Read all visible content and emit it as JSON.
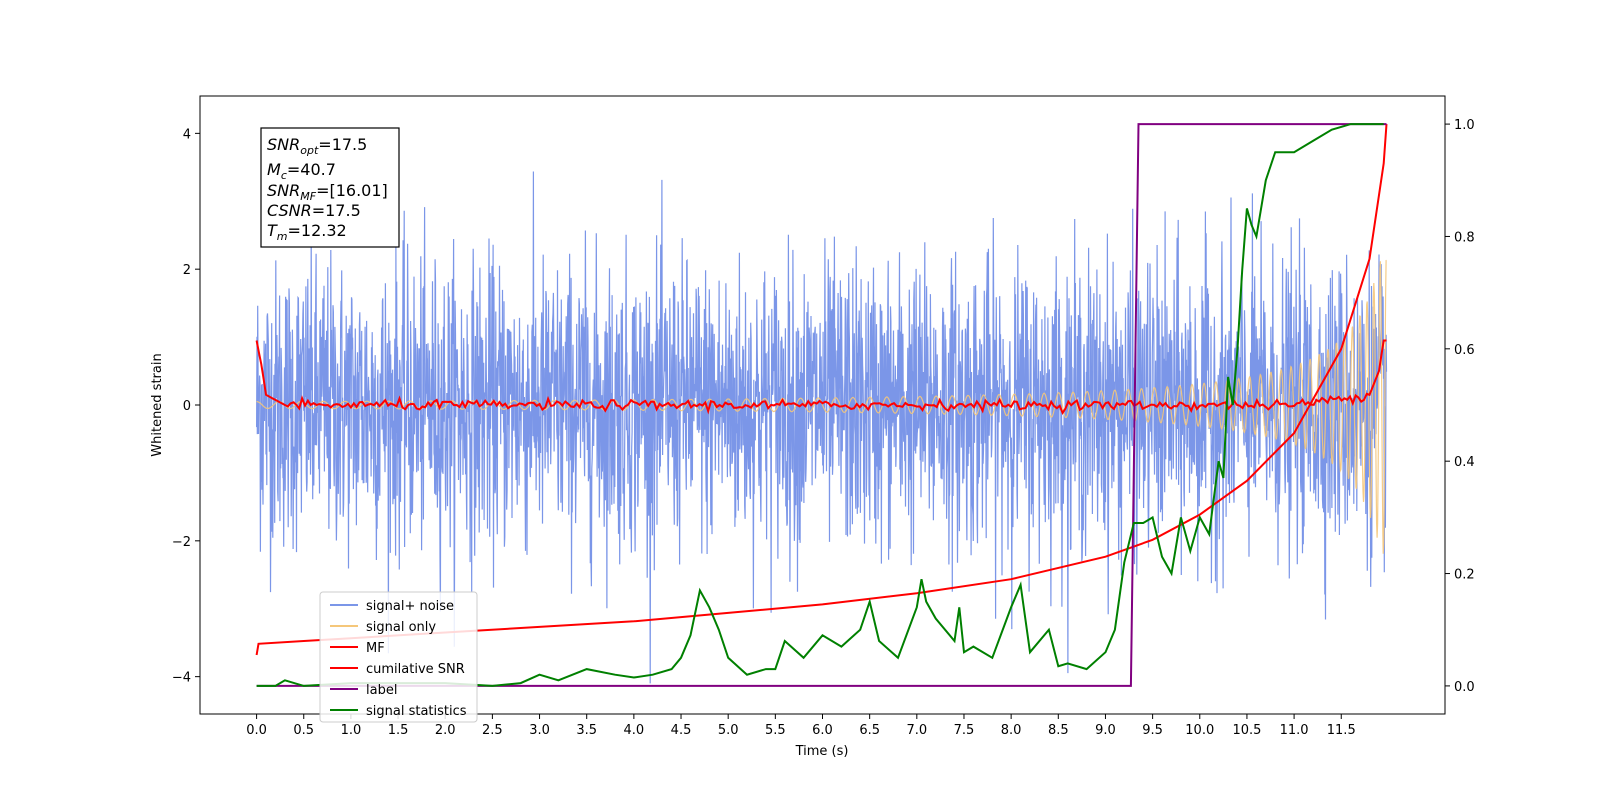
{
  "chart_data": {
    "type": "line",
    "xlabel": "Time (s)",
    "ylabel": "Whitened strain",
    "xlim": [
      -0.6,
      12.6
    ],
    "ylim": [
      -4.55,
      4.55
    ],
    "y2lim": [
      -0.05,
      1.05
    ],
    "x_ticks": [
      "0.0",
      "0.5",
      "1.0",
      "1.5",
      "2.0",
      "2.5",
      "3.0",
      "3.5",
      "4.0",
      "4.5",
      "5.0",
      "5.5",
      "6.0",
      "6.5",
      "7.0",
      "7.5",
      "8.0",
      "8.5",
      "9.0",
      "9.5",
      "10.0",
      "10.5",
      "11.0",
      "11.5"
    ],
    "y_ticks": [
      "−4",
      "−2",
      "0",
      "2",
      "4"
    ],
    "y2_ticks": [
      "0.0",
      "0.2",
      "0.4",
      "0.6",
      "0.8",
      "1.0"
    ],
    "legend_position": "lower-left",
    "colors": {
      "signal_noise": "#7b96e8",
      "signal_only": "#f5c77a",
      "mf": "#ff0000",
      "cumulative_snr": "#ff0000",
      "label": "#800080",
      "signal_statistics": "#008000"
    },
    "annotation": {
      "snr_opt": {
        "main": "SNR",
        "sub": "opt",
        "value": "=17.5"
      },
      "mc": {
        "main": "M",
        "sub": "c",
        "value": "=40.7"
      },
      "snr_mf": {
        "main": "SNR",
        "sub": "MF",
        "value": "=[16.01]"
      },
      "csnr": {
        "main": "CSNR",
        "value": "=17.5"
      },
      "tm": {
        "main": "T",
        "sub": "m",
        "value": "=12.32"
      }
    },
    "series": [
      {
        "name": "signal+ noise",
        "axis": "left",
        "note": "whitened noise, spread approx ±3, t from 0.0 to 11.98 s"
      },
      {
        "name": "signal only",
        "axis": "left",
        "note": "chirp amplitude growing to approx 2.2 at t=11.98"
      },
      {
        "name": "MF",
        "axis": "left",
        "x": [
          0.0,
          0.05,
          0.1,
          0.3,
          1.0,
          2.0,
          3.0,
          4.0,
          5.0,
          6.0,
          7.0,
          8.0,
          9.0,
          10.0,
          11.0,
          11.8,
          11.9,
          11.95,
          11.98
        ],
        "y": [
          0.95,
          0.6,
          0.15,
          0.0,
          0.0,
          0.0,
          0.0,
          0.0,
          0.0,
          0.0,
          0.0,
          0.0,
          0.0,
          0.0,
          0.0,
          0.15,
          0.5,
          0.95,
          0.95
        ]
      },
      {
        "name": "cumilative SNR",
        "axis": "right",
        "x": [
          0.0,
          0.02,
          0.5,
          1.0,
          2.0,
          3.0,
          4.0,
          5.0,
          6.0,
          7.0,
          8.0,
          9.0,
          9.5,
          10.0,
          10.5,
          11.0,
          11.5,
          11.8,
          11.95,
          11.98
        ],
        "y": [
          0.055,
          0.075,
          0.08,
          0.085,
          0.095,
          0.105,
          0.115,
          0.13,
          0.145,
          0.165,
          0.19,
          0.23,
          0.26,
          0.305,
          0.365,
          0.45,
          0.6,
          0.76,
          0.93,
          1.0
        ]
      },
      {
        "name": "label",
        "axis": "right",
        "x": [
          0.0,
          9.27,
          9.35,
          11.98
        ],
        "y": [
          0.0,
          0.0,
          1.0,
          1.0
        ]
      },
      {
        "name": "signal statistics",
        "axis": "right",
        "x": [
          0.0,
          0.2,
          0.3,
          0.5,
          1.0,
          1.5,
          2.0,
          2.5,
          2.8,
          3.0,
          3.2,
          3.5,
          3.8,
          4.0,
          4.2,
          4.4,
          4.5,
          4.6,
          4.7,
          4.8,
          4.9,
          5.0,
          5.2,
          5.4,
          5.5,
          5.6,
          5.8,
          6.0,
          6.2,
          6.4,
          6.5,
          6.6,
          6.8,
          7.0,
          7.05,
          7.1,
          7.2,
          7.4,
          7.45,
          7.5,
          7.6,
          7.8,
          8.0,
          8.1,
          8.2,
          8.4,
          8.5,
          8.6,
          8.8,
          9.0,
          9.1,
          9.2,
          9.3,
          9.4,
          9.5,
          9.6,
          9.7,
          9.8,
          9.9,
          10.0,
          10.1,
          10.2,
          10.25,
          10.3,
          10.35,
          10.4,
          10.45,
          10.5,
          10.55,
          10.6,
          10.7,
          10.8,
          11.0,
          11.2,
          11.4,
          11.6,
          11.8,
          11.95
        ],
        "y": [
          0.0,
          0.0,
          0.01,
          0.0,
          0.005,
          0.005,
          0.005,
          0.0,
          0.005,
          0.02,
          0.01,
          0.03,
          0.02,
          0.015,
          0.02,
          0.03,
          0.05,
          0.09,
          0.17,
          0.14,
          0.1,
          0.05,
          0.02,
          0.03,
          0.03,
          0.08,
          0.05,
          0.09,
          0.07,
          0.1,
          0.15,
          0.08,
          0.05,
          0.14,
          0.19,
          0.15,
          0.12,
          0.08,
          0.14,
          0.06,
          0.07,
          0.05,
          0.14,
          0.18,
          0.06,
          0.1,
          0.035,
          0.04,
          0.03,
          0.06,
          0.1,
          0.22,
          0.29,
          0.29,
          0.3,
          0.23,
          0.2,
          0.3,
          0.24,
          0.3,
          0.27,
          0.4,
          0.37,
          0.55,
          0.5,
          0.6,
          0.74,
          0.85,
          0.82,
          0.8,
          0.9,
          0.95,
          0.95,
          0.97,
          0.99,
          1.0,
          1.0,
          1.0
        ]
      }
    ]
  }
}
